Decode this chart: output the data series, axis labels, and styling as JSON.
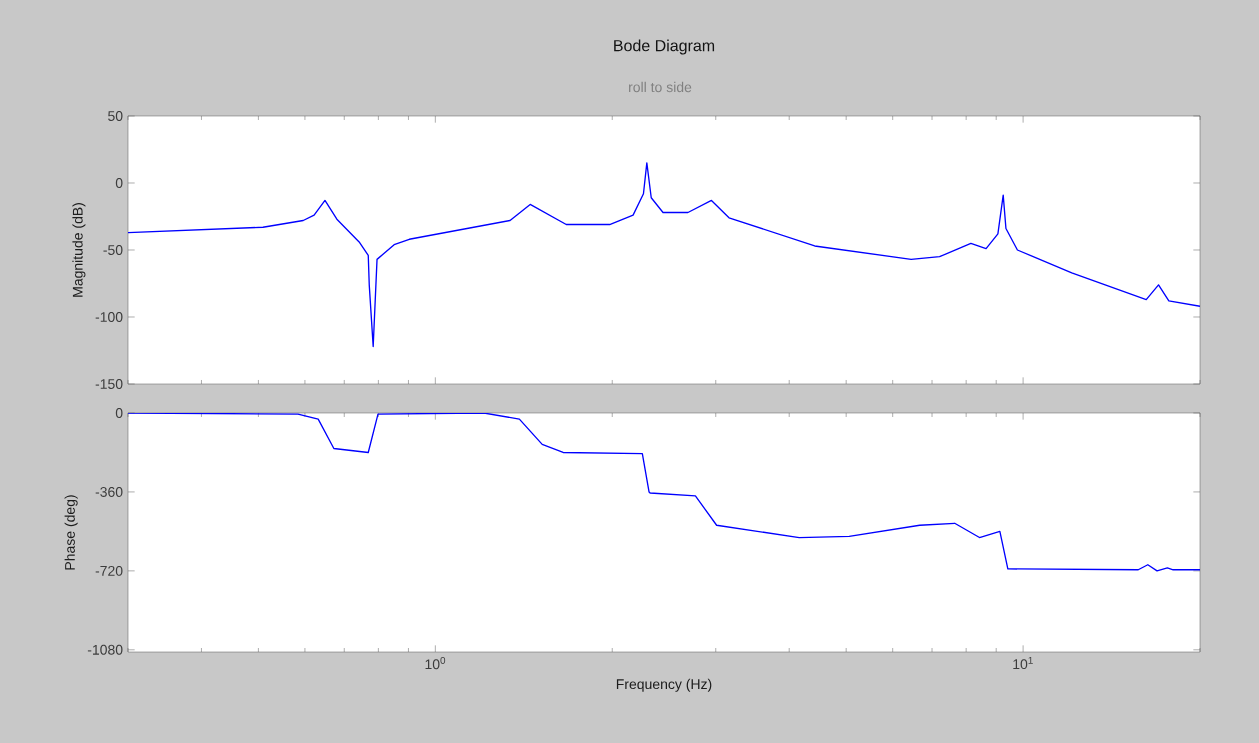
{
  "chart_data": [
    {
      "type": "line",
      "title": "Bode Diagram",
      "subtitle": "roll to side",
      "ylabel": "Magnitude (dB)",
      "log": "x",
      "grid": false,
      "tick_labels": "y",
      "line_style": "solid",
      "xlim": [
        0.3,
        20
      ],
      "ylim": [
        -150,
        50
      ],
      "yticks": [
        50,
        0,
        -50,
        -100,
        -150
      ],
      "series": [
        {
          "color": "#0000ff",
          "x": [
            0.3,
            0.509,
            0.596,
            0.622,
            0.649,
            0.68,
            0.742,
            0.769,
            0.772,
            0.784,
            0.796,
            0.851,
            0.903,
            1.34,
            1.45,
            1.67,
            1.98,
            2.17,
            2.26,
            2.29,
            2.33,
            2.44,
            2.69,
            2.95,
            3.16,
            4.42,
            6.45,
            7.21,
            8.15,
            8.65,
            9.06,
            9.25,
            9.35,
            9.78,
            12.1,
            16.2,
            17.0,
            17.7,
            20
          ],
          "values": [
            -37,
            -33,
            -28,
            -24,
            -13,
            -27,
            -44,
            -54,
            -76,
            -122,
            -57,
            -46,
            -42,
            -28,
            -16,
            -31,
            -31,
            -24,
            -8,
            15,
            -11,
            -22,
            -22,
            -13,
            -26,
            -47,
            -57,
            -55,
            -45,
            -49,
            -38,
            -9,
            -34,
            -50,
            -67,
            -87,
            -76,
            -88,
            -92
          ]
        }
      ]
    },
    {
      "type": "line",
      "ylabel": "Phase (deg)",
      "xlabel": "Frequency  (Hz)",
      "log": "x",
      "grid": false,
      "line_style": "solid",
      "xlim": [
        0.3,
        20
      ],
      "xticks": [
        {
          "value": 1,
          "label": "10$^{0}$"
        },
        {
          "value": 10,
          "label": "10$^{1}$"
        }
      ],
      "ylim": [
        -1090,
        0
      ],
      "yticks": [
        0,
        -360,
        -720,
        -1080
      ],
      "series": [
        {
          "color": "#0000ff",
          "x": [
            0.3,
            0.584,
            0.632,
            0.672,
            0.769,
            0.799,
            1.21,
            1.39,
            1.52,
            1.65,
            2.25,
            2.31,
            2.32,
            2.77,
            3.01,
            4.16,
            5.06,
            6.67,
            7.65,
            8.43,
            9.13,
            9.42,
            15.7,
            16.3,
            16.9,
            17.6,
            18.0,
            20
          ],
          "values": [
            0,
            -5,
            -28,
            -162,
            -180,
            -5,
            0,
            -28,
            -143,
            -180,
            -185,
            -360,
            -365,
            -378,
            -512,
            -568,
            -563,
            -512,
            -503,
            -568,
            -540,
            -711,
            -715,
            -692,
            -720,
            -706,
            -715,
            -715
          ]
        }
      ]
    }
  ]
}
